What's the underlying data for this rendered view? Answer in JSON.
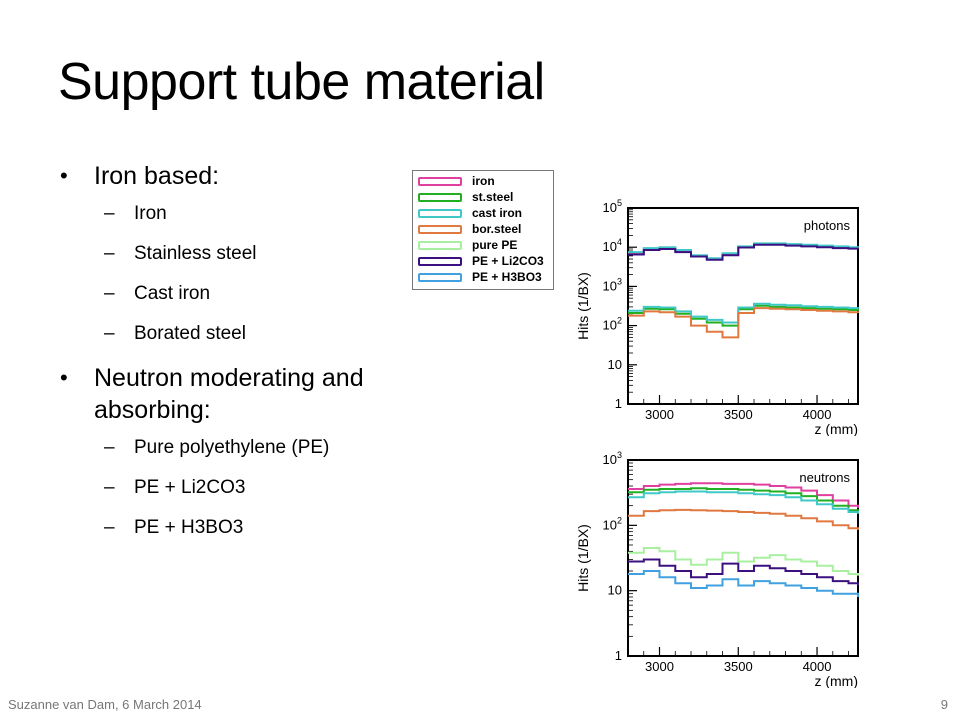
{
  "slide": {
    "title": "Support tube material",
    "footer": "Suzanne van Dam, 6 March 2014",
    "page_number": "9"
  },
  "bullets": {
    "group1": {
      "heading": "Iron based:",
      "items": [
        "Iron",
        "Stainless steel",
        "Cast iron",
        "Borated steel"
      ]
    },
    "group2": {
      "heading": "Neutron moderating and absorbing:",
      "items": [
        "Pure polyethylene (PE)",
        "PE + Li2CO3",
        "PE + H3BO3"
      ]
    }
  },
  "legend": [
    {
      "label": "iron",
      "color": "#e040a0"
    },
    {
      "label": "st.steel",
      "color": "#22b022"
    },
    {
      "label": "cast iron",
      "color": "#40c8c8"
    },
    {
      "label": "bor.steel",
      "color": "#e07840"
    },
    {
      "label": "pure PE",
      "color": "#a8f0a0"
    },
    {
      "label": "PE + Li2CO3",
      "color": "#3c1080"
    },
    {
      "label": "PE + H3BO3",
      "color": "#40a0e0"
    }
  ],
  "chart_data": [
    {
      "type": "line",
      "annotation": "photons",
      "xlabel": "z (mm)",
      "ylabel": "Hits (1/BX)",
      "xlim": [
        2800,
        4260
      ],
      "ylim": [
        1,
        100000
      ],
      "yscale": "log",
      "xticks": [
        "3000",
        "3500",
        "4000"
      ],
      "yticks": [
        "1",
        "10",
        "10^2",
        "10^3",
        "10^4",
        "10^5"
      ],
      "x": [
        2800,
        2900,
        3000,
        3100,
        3200,
        3300,
        3400,
        3500,
        3600,
        3700,
        3800,
        3900,
        4000,
        4100,
        4200,
        4260
      ],
      "series": [
        {
          "color": "#e040a0",
          "values": [
            7000,
            9000,
            9500,
            8000,
            6000,
            5000,
            6500,
            10000,
            12000,
            12000,
            11500,
            11000,
            10500,
            10000,
            9800,
            9500
          ]
        },
        {
          "color": "#40c8c8",
          "values": [
            7500,
            9500,
            10000,
            8500,
            6200,
            5200,
            7000,
            10500,
            12500,
            12500,
            12000,
            11500,
            11000,
            10500,
            10000,
            9800
          ]
        },
        {
          "color": "#3c1080",
          "values": [
            6500,
            8500,
            9000,
            7500,
            5800,
            4800,
            6200,
            9800,
            11500,
            11500,
            11000,
            10500,
            10000,
            9500,
            9200,
            9000
          ]
        },
        {
          "color": "#22b022",
          "values": [
            210,
            270,
            260,
            200,
            150,
            120,
            100,
            260,
            320,
            300,
            290,
            280,
            270,
            260,
            250,
            240
          ]
        },
        {
          "color": "#40c8c8",
          "values": [
            240,
            300,
            290,
            230,
            170,
            140,
            120,
            290,
            360,
            340,
            330,
            310,
            300,
            290,
            280,
            270
          ]
        },
        {
          "color": "#e07840",
          "values": [
            180,
            230,
            220,
            170,
            100,
            70,
            50,
            210,
            280,
            270,
            260,
            250,
            240,
            230,
            220,
            210
          ]
        }
      ]
    },
    {
      "type": "line",
      "annotation": "neutrons",
      "xlabel": "z (mm)",
      "ylabel": "Hits (1/BX)",
      "xlim": [
        2800,
        4260
      ],
      "ylim": [
        1,
        1000
      ],
      "yscale": "log",
      "xticks": [
        "3000",
        "3500",
        "4000"
      ],
      "yticks": [
        "1",
        "10",
        "10^2",
        "10^3"
      ],
      "x": [
        2800,
        2900,
        3000,
        3100,
        3200,
        3300,
        3400,
        3500,
        3600,
        3700,
        3800,
        3900,
        4000,
        4100,
        4200,
        4260
      ],
      "series": [
        {
          "color": "#e040a0",
          "values": [
            360,
            400,
            420,
            430,
            440,
            440,
            430,
            430,
            420,
            400,
            380,
            340,
            290,
            240,
            200,
            185
          ]
        },
        {
          "color": "#22b022",
          "values": [
            320,
            350,
            360,
            360,
            370,
            360,
            360,
            350,
            340,
            330,
            310,
            280,
            240,
            200,
            170,
            160
          ]
        },
        {
          "color": "#40c8c8",
          "values": [
            270,
            310,
            320,
            330,
            330,
            320,
            320,
            310,
            300,
            290,
            270,
            240,
            210,
            180,
            160,
            150
          ]
        },
        {
          "color": "#e07840",
          "values": [
            140,
            165,
            170,
            172,
            170,
            168,
            165,
            160,
            155,
            150,
            140,
            128,
            115,
            100,
            90,
            85
          ]
        },
        {
          "color": "#a8f0a0",
          "values": [
            38,
            45,
            40,
            30,
            25,
            30,
            38,
            28,
            32,
            35,
            30,
            28,
            24,
            20,
            18,
            17
          ]
        },
        {
          "color": "#3c1080",
          "values": [
            28,
            30,
            24,
            20,
            16,
            18,
            26,
            20,
            24,
            22,
            20,
            18,
            16,
            14,
            13,
            12
          ]
        },
        {
          "color": "#40a0e0",
          "values": [
            18,
            20,
            16,
            13,
            11,
            12,
            15,
            12,
            14,
            13,
            12,
            11,
            10,
            9,
            9,
            8
          ]
        }
      ]
    }
  ]
}
